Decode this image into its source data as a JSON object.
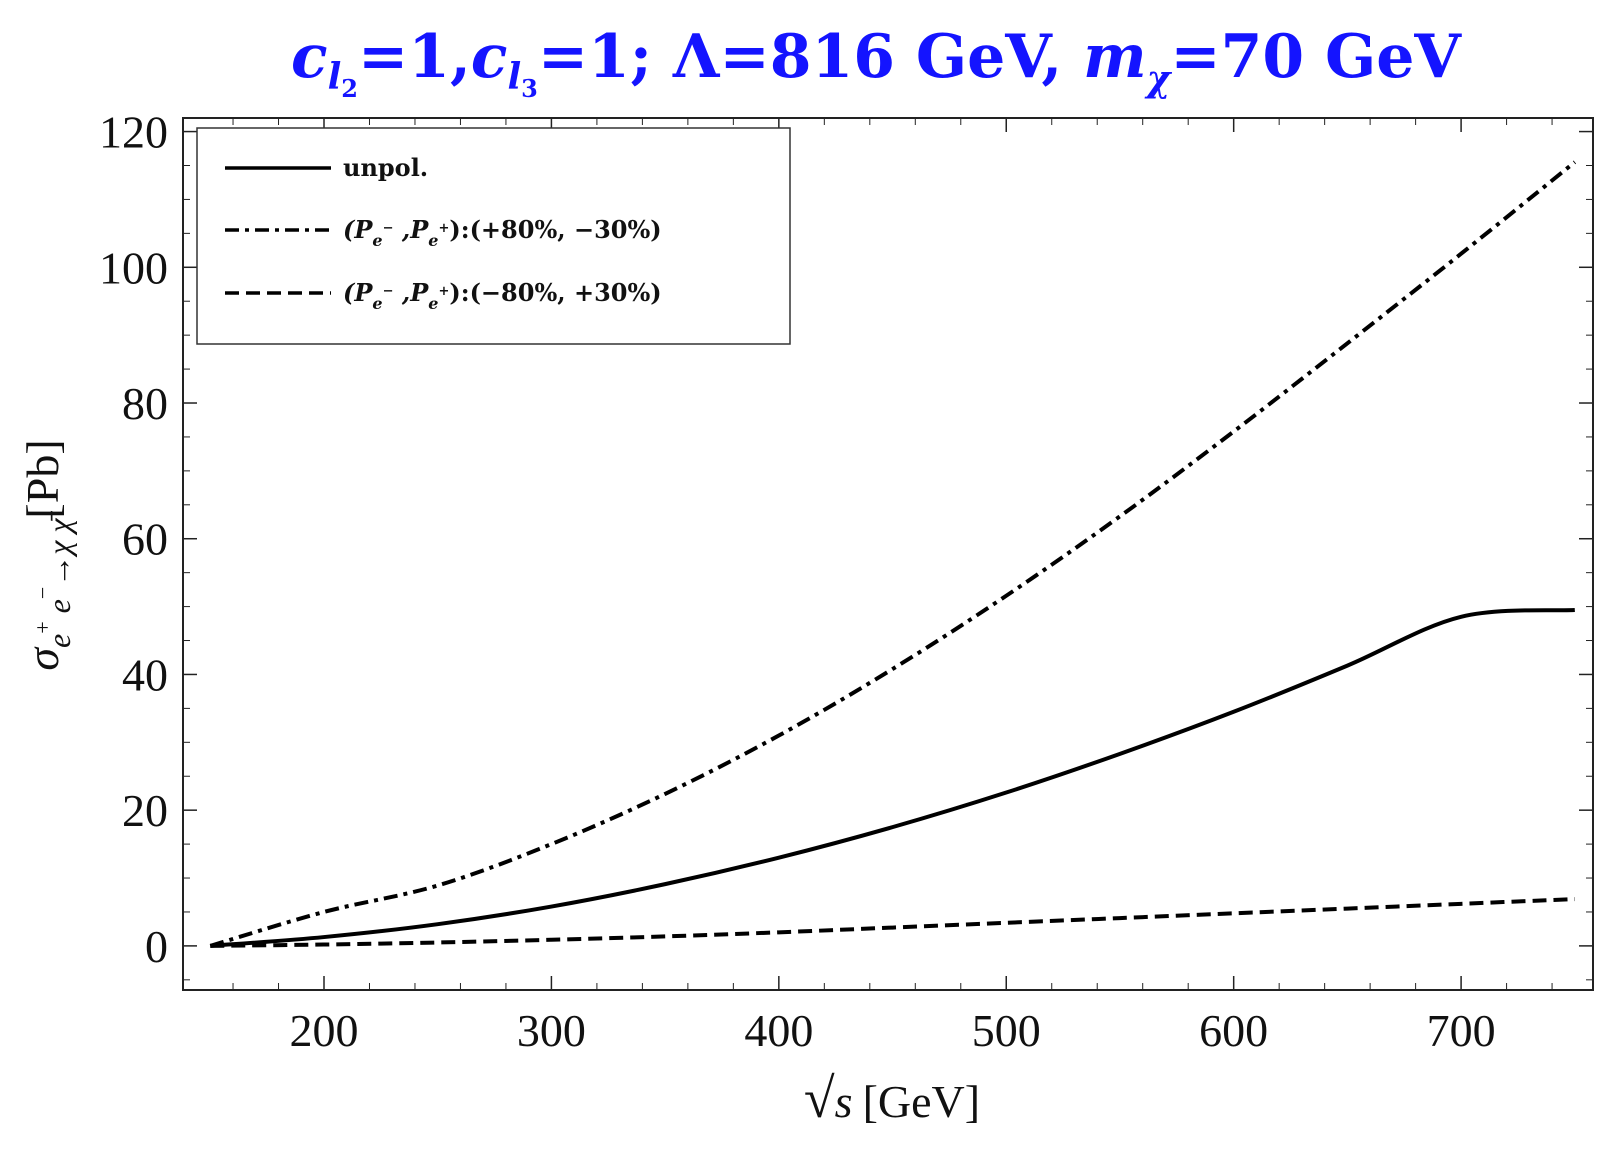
{
  "chart_data": {
    "type": "line",
    "title": {
      "c": "c",
      "l2": "l",
      "l2_sub": "2",
      "eq1": "=1,",
      "l3": "l",
      "l3_sub": "3",
      "eq2": "=1; Λ=816 GeV, ",
      "m": "m",
      "chi": "χ",
      "eq3": "=70 GeV"
    },
    "xlabel": {
      "sqrt": "√",
      "s": "s",
      "unit": "[GeV]"
    },
    "ylabel": {
      "sigma": "σ",
      "sub": "e",
      "sup1": "+",
      "sub2": " e",
      "sup2": "−",
      "arrow": "→χ χ̄",
      "unit": "[Pb]"
    },
    "xlim": [
      138,
      758
    ],
    "ylim": [
      -6.5,
      122
    ],
    "x_ticks": [
      200,
      300,
      400,
      500,
      600,
      700
    ],
    "y_ticks": [
      0,
      20,
      40,
      60,
      80,
      100,
      120
    ],
    "grid": false,
    "legend_position": "top-left",
    "x": [
      150,
      200,
      250,
      300,
      350,
      400,
      450,
      500,
      550,
      600,
      650,
      700,
      750
    ],
    "series": [
      {
        "name": "unpol.",
        "style": "solid",
        "values": [
          0,
          1.3,
          3.2,
          5.8,
          9.1,
          13.0,
          17.5,
          22.6,
          28.3,
          34.5,
          41.3,
          48.5,
          49.5
        ]
      },
      {
        "name": "(P_e−,P_e+):(+80%, −30%)",
        "style": "dashdot",
        "values": [
          0,
          5.0,
          8.9,
          15.0,
          22.4,
          31.0,
          40.8,
          51.6,
          63.3,
          75.8,
          88.8,
          102.0,
          115.5
        ]
      },
      {
        "name": "(P_e−,P_e+):(−80%, +30%)",
        "style": "dashed",
        "values": [
          0,
          0.2,
          0.5,
          0.9,
          1.4,
          2.0,
          2.7,
          3.4,
          4.1,
          4.8,
          5.5,
          6.2,
          6.9
        ]
      }
    ],
    "legend": [
      {
        "text": "unpol."
      },
      {
        "p1": "(P",
        "s1": "e",
        "sup1": "−",
        "mid": " ,P",
        "s2": "e",
        "sup2": "+",
        "rest": "):(+80%, −30%)"
      },
      {
        "p1": "(P",
        "s1": "e",
        "sup1": "−",
        "mid": " ,P",
        "s2": "e",
        "sup2": "+",
        "rest": "):(−80%, +30%)"
      }
    ]
  }
}
